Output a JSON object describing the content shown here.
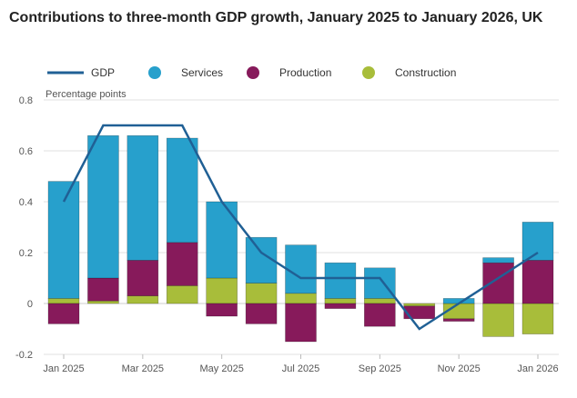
{
  "title": "Contributions to three-month GDP growth, January 2025 to January 2026, UK",
  "chart_data": {
    "type": "bar",
    "stacked": true,
    "title": "Contributions to three-month GDP growth, January 2025 to January 2026, UK",
    "ylabel": "Percentage points",
    "xlabel": "",
    "ylim": [
      -0.2,
      0.8
    ],
    "yticks": [
      "-0.2",
      "0",
      "0.2",
      "0.4",
      "0.6",
      "0.8"
    ],
    "grid": true,
    "legend": "top",
    "categories": [
      "Jan 2025",
      "Feb 2025",
      "Mar 2025",
      "Apr 2025",
      "May 2025",
      "Jun 2025",
      "Jul 2025",
      "Aug 2025",
      "Sep 2025",
      "Oct 2025",
      "Nov 2025",
      "Dec 2025",
      "Jan 2026"
    ],
    "xtick_labels": [
      "Jan 2025",
      "Mar 2025",
      "May 2025",
      "Jul 2025",
      "Sep 2025",
      "Nov 2025",
      "Jan 2026"
    ],
    "series": [
      {
        "name": "Services",
        "color": "#27a0cc",
        "values": [
          0.46,
          0.56,
          0.49,
          0.41,
          0.3,
          0.18,
          0.19,
          0.14,
          0.12,
          0.0,
          0.02,
          0.02,
          0.15
        ]
      },
      {
        "name": "Production",
        "color": "#871a5b",
        "values": [
          -0.08,
          0.09,
          0.14,
          0.17,
          -0.05,
          -0.08,
          -0.15,
          -0.02,
          -0.09,
          -0.05,
          -0.01,
          0.16,
          0.17
        ]
      },
      {
        "name": "Construction",
        "color": "#a8bd3a",
        "values": [
          0.02,
          0.01,
          0.03,
          0.07,
          0.1,
          0.08,
          0.04,
          0.02,
          0.02,
          -0.01,
          -0.06,
          -0.13,
          -0.12
        ]
      }
    ],
    "line": {
      "name": "GDP",
      "color": "#206095",
      "values": [
        0.4,
        0.7,
        0.7,
        0.7,
        0.4,
        0.2,
        0.1,
        0.1,
        0.1,
        -0.1,
        0.0,
        0.1,
        0.2
      ]
    }
  }
}
